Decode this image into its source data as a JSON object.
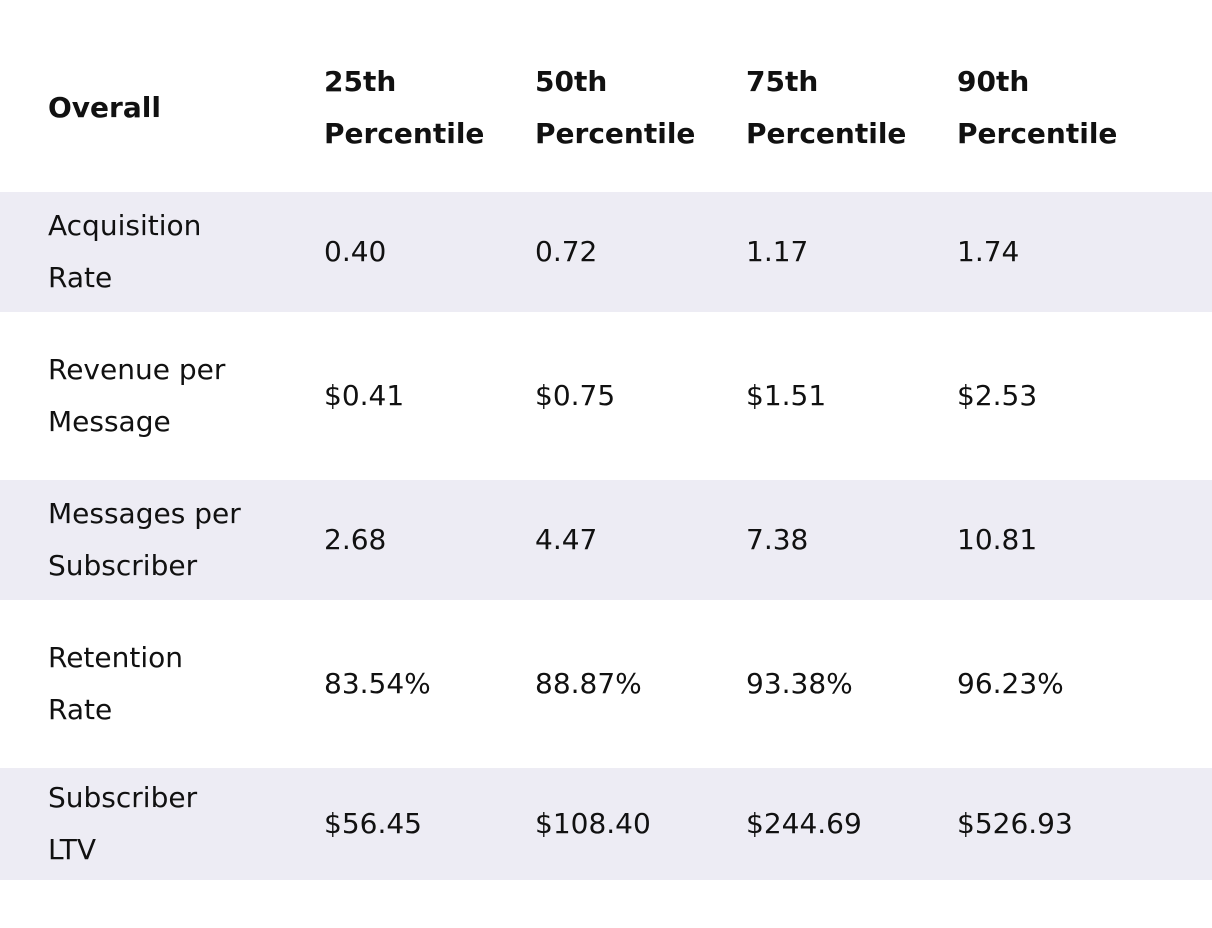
{
  "table": {
    "header": [
      [
        "Overall"
      ],
      [
        "25th",
        "Percentile"
      ],
      [
        "50th",
        "Percentile"
      ],
      [
        "75th",
        "Percentile"
      ],
      [
        "90th",
        "Percentile"
      ]
    ],
    "rows": [
      [
        [
          "Acquisition",
          "Rate"
        ],
        "0.40",
        "0.72",
        "1.17",
        "1.74"
      ],
      [
        [
          "Revenue per",
          "Message"
        ],
        "$0.41",
        "$0.75",
        "$1.51",
        "$2.53"
      ],
      [
        [
          "Messages per",
          "Subscriber"
        ],
        "2.68",
        "4.47",
        "7.38",
        "10.81"
      ],
      [
        [
          "Retention",
          "Rate"
        ],
        "83.54%",
        "88.87%",
        "93.38%",
        "96.23%"
      ],
      [
        [
          "Subscriber",
          "LTV"
        ],
        "$56.45",
        "$108.40",
        "$244.69",
        "$526.93"
      ]
    ]
  }
}
